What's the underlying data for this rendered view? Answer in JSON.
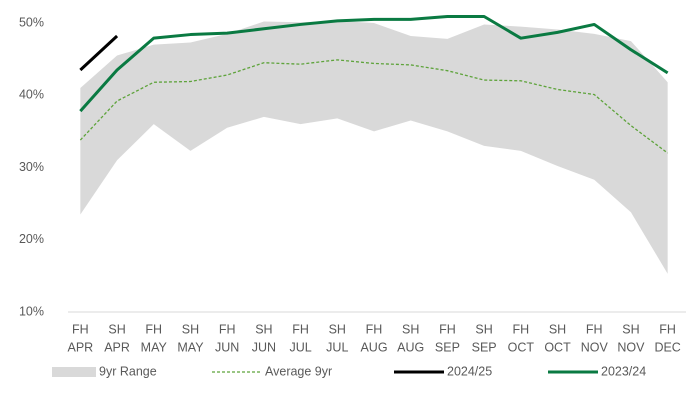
{
  "chart_data": {
    "type": "line",
    "categories": [
      [
        "FH",
        "APR"
      ],
      [
        "SH",
        "APR"
      ],
      [
        "FH",
        "MAY"
      ],
      [
        "SH",
        "MAY"
      ],
      [
        "FH",
        "JUN"
      ],
      [
        "SH",
        "JUN"
      ],
      [
        "FH",
        "JUL"
      ],
      [
        "SH",
        "JUL"
      ],
      [
        "FH",
        "AUG"
      ],
      [
        "SH",
        "AUG"
      ],
      [
        "FH",
        "SEP"
      ],
      [
        "SH",
        "SEP"
      ],
      [
        "FH",
        "OCT"
      ],
      [
        "SH",
        "OCT"
      ],
      [
        "FH",
        "NOV"
      ],
      [
        "SH",
        "NOV"
      ],
      [
        "FH",
        "DEC"
      ]
    ],
    "ylim": [
      10,
      50
    ],
    "yticks": [
      {
        "value": 10,
        "label": "10%"
      },
      {
        "value": 20,
        "label": "20%"
      },
      {
        "value": 30,
        "label": "30%"
      },
      {
        "value": 40,
        "label": "40%"
      },
      {
        "value": 50,
        "label": "50%"
      }
    ],
    "range": {
      "name": "9yr Range",
      "color": "#d9d9d9",
      "high": [
        41,
        45.5,
        47,
        47.3,
        48.5,
        50.2,
        50.1,
        50.3,
        50,
        48.2,
        47.8,
        49.8,
        49.5,
        49.1,
        48.5,
        47.5,
        41.8
      ],
      "low": [
        23.5,
        31,
        36,
        32.3,
        35.5,
        37,
        36,
        36.8,
        35,
        36.5,
        35,
        33,
        32.3,
        30.2,
        28.3,
        23.8,
        15.3
      ]
    },
    "series": [
      {
        "name": "Average 9yr",
        "color": "#5ea33b",
        "style": "dashed",
        "values": [
          33.8,
          39.2,
          41.8,
          41.9,
          42.8,
          44.5,
          44.3,
          44.9,
          44.4,
          44.2,
          43.4,
          42.1,
          42,
          40.8,
          40.1,
          35.8,
          32
        ]
      },
      {
        "name": "2024/25",
        "color": "#000000",
        "style": "solid",
        "values": [
          43.5,
          48.2,
          null,
          null,
          null,
          null,
          null,
          null,
          null,
          null,
          null,
          null,
          null,
          null,
          null,
          null,
          null
        ]
      },
      {
        "name": "2023/24",
        "color": "#0a7a42",
        "style": "solid",
        "values": [
          37.8,
          43.5,
          47.9,
          48.4,
          48.6,
          49.2,
          49.8,
          50.3,
          50.5,
          50.5,
          50.9,
          50.9,
          47.9,
          48.7,
          49.8,
          46.3,
          43.1
        ]
      }
    ]
  }
}
